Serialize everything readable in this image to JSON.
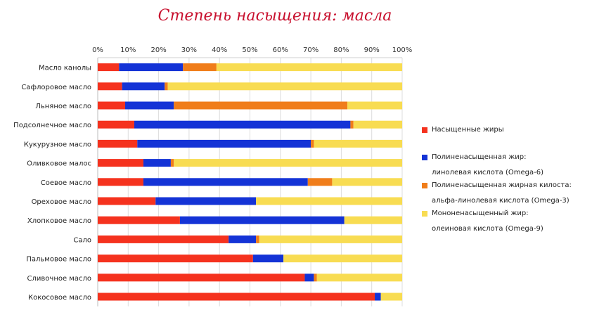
{
  "chart_data": {
    "type": "bar",
    "orientation": "horizontal",
    "stacked": true,
    "title": "Степень насыщения: масла",
    "xlim": [
      0,
      100
    ],
    "x_ticks": [
      "0%",
      "10%",
      "20%",
      "30%",
      "40%",
      "50%",
      "60%",
      "70%",
      "80%",
      "90%",
      "100%"
    ],
    "grid": true,
    "legend_position": "right",
    "categories": [
      "Масло канолы",
      "Сафлоровое масло",
      "Льняное масло",
      "Подсолнечное масло",
      "Кукурузное масло",
      "Оливковое малос",
      "Соевое масло",
      "Ореховое масло",
      "Хлопковое масло",
      "Сало",
      "Пальмовое масло",
      "Сливочное масло",
      "Кокосовое масло"
    ],
    "series": [
      {
        "key": "sat",
        "color": "#f5321e",
        "values": [
          7,
          8,
          9,
          12,
          13,
          15,
          15,
          19,
          27,
          43,
          51,
          68,
          91
        ]
      },
      {
        "key": "poly6",
        "color": "#1433d6",
        "values": [
          21,
          14,
          16,
          71,
          57,
          9,
          54,
          33,
          54,
          9,
          10,
          3,
          2
        ]
      },
      {
        "key": "poly3",
        "color": "#f07d1a",
        "values": [
          11,
          1,
          57,
          1,
          1,
          1,
          8,
          0,
          0,
          1,
          0,
          1,
          0
        ]
      },
      {
        "key": "mono9",
        "color": "#f8dc52",
        "values": [
          61,
          77,
          18,
          16,
          29,
          75,
          23,
          48,
          19,
          47,
          39,
          28,
          7
        ]
      }
    ]
  },
  "legend": [
    {
      "color": "#f5321e",
      "line1": "Насыщенные жиры",
      "line2": ""
    },
    {
      "color": "#1433d6",
      "line1": "Полиненасыщенная жир:",
      "line2": "линолевая кислота (Omega-6)"
    },
    {
      "color": "#f07d1a",
      "line1": "Полиненасыщенная жирная килоста:",
      "line2": "альфа-линолевая кислота (Omega-3)"
    },
    {
      "color": "#f8dc52",
      "line1": "Мононенасыщенный жир:",
      "line2": "олеиновая кислота (Omega-9)"
    }
  ]
}
